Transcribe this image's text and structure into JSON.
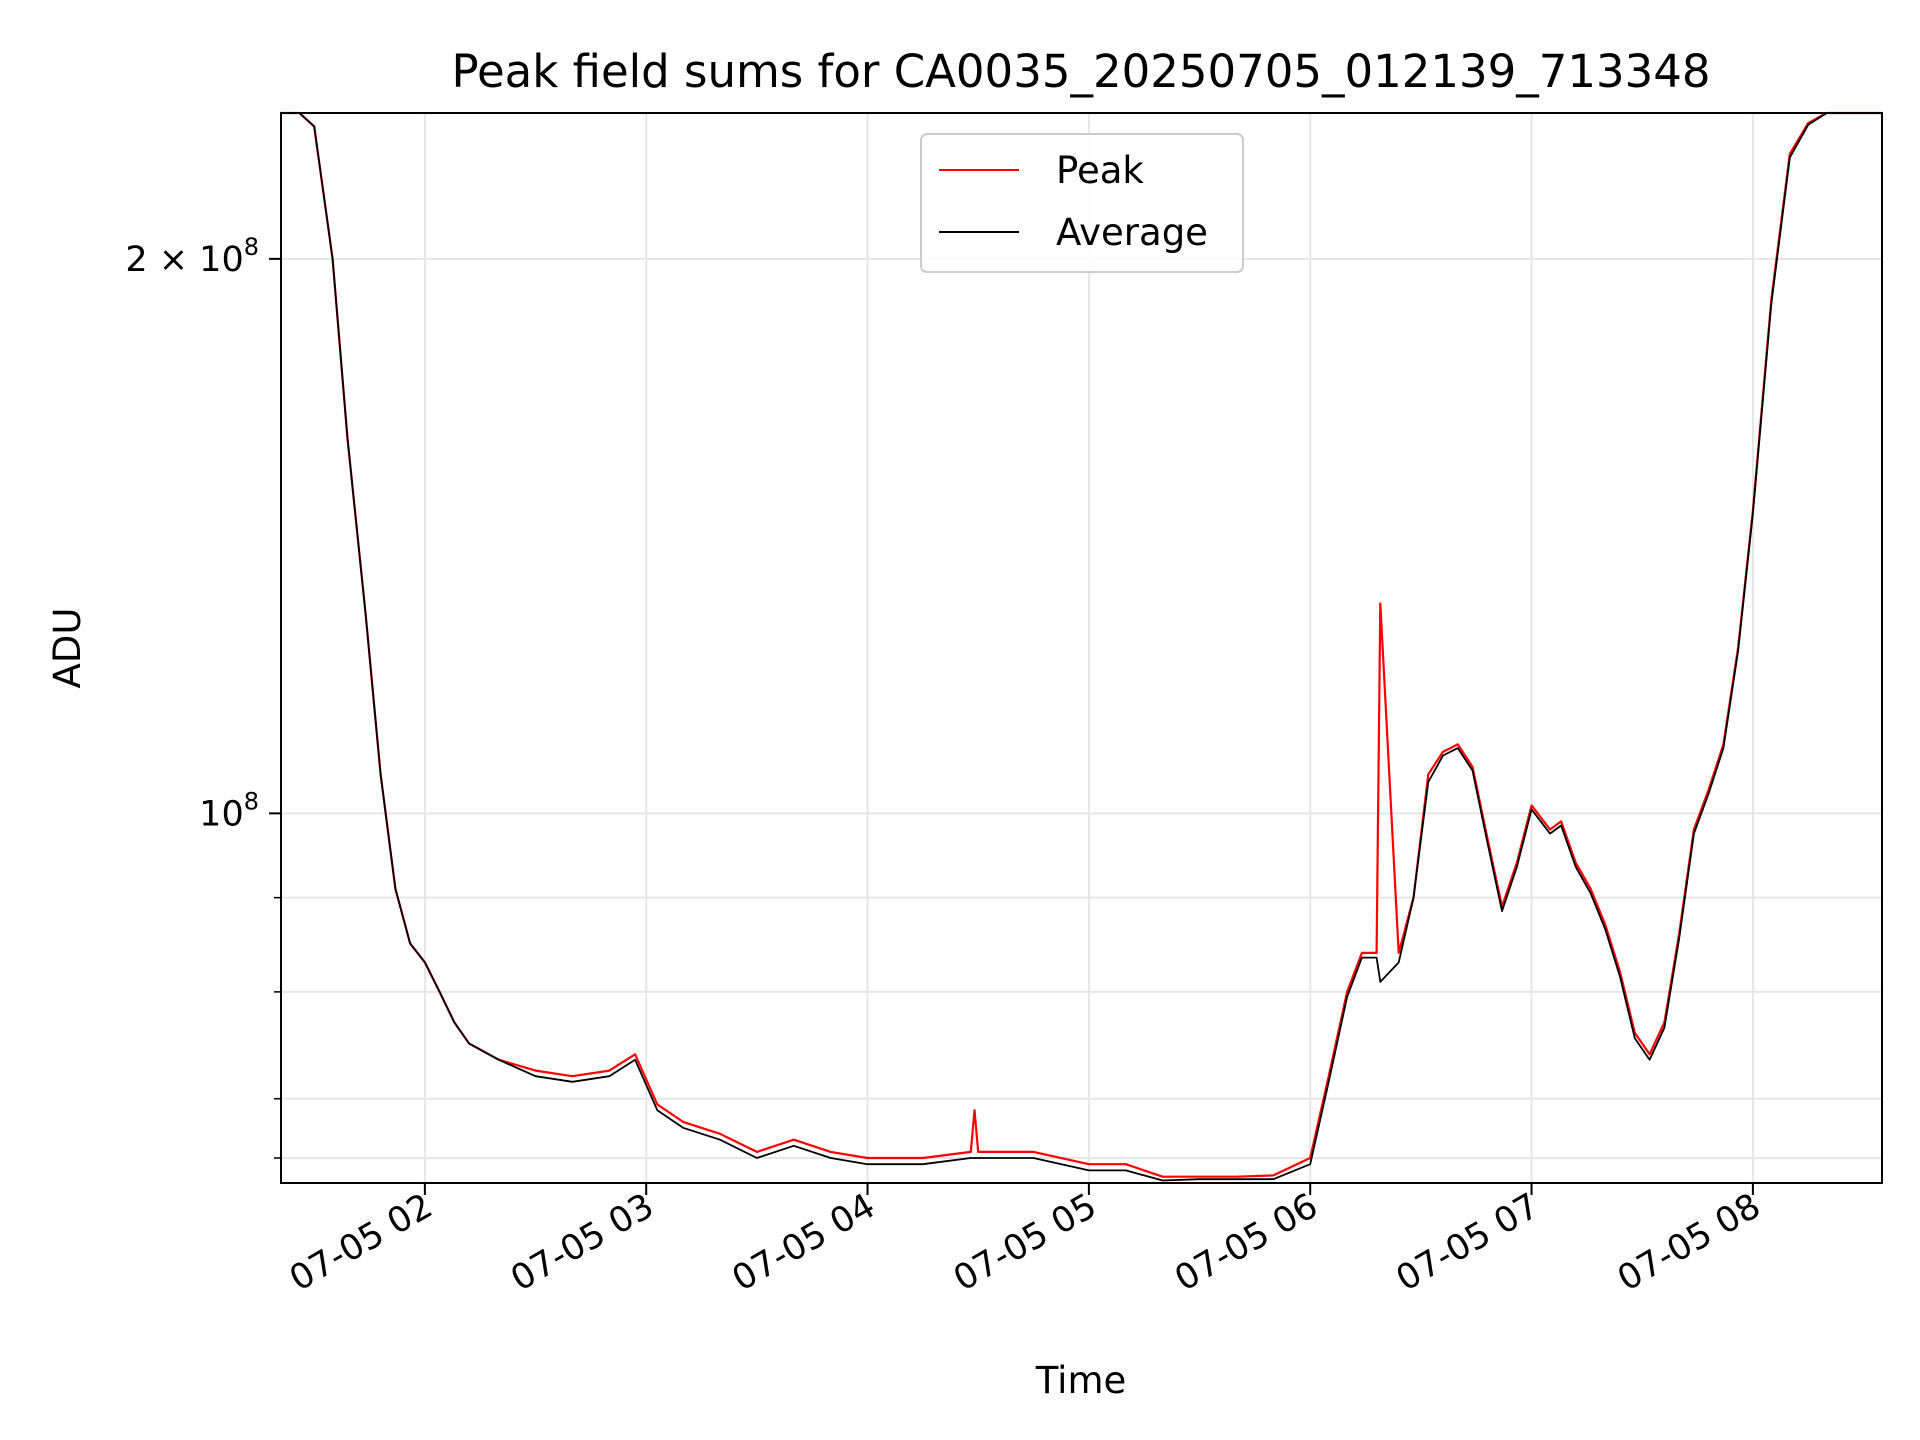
{
  "chart_data": {
    "type": "line",
    "title": "Peak field sums for CA0035_20250705_012139_713348",
    "xlabel": "Time",
    "ylabel": "ADU",
    "x_scale": "time",
    "y_scale": "log",
    "xlim": [
      "2025-07-05 01:21",
      "2025-07-05 08:35"
    ],
    "ylim": [
      63000000,
      240000000
    ],
    "x_ticks": [
      {
        "value": "2025-07-05 02:00",
        "label": "07-05 02"
      },
      {
        "value": "2025-07-05 03:00",
        "label": "07-05 03"
      },
      {
        "value": "2025-07-05 04:00",
        "label": "07-05 04"
      },
      {
        "value": "2025-07-05 05:00",
        "label": "07-05 05"
      },
      {
        "value": "2025-07-05 06:00",
        "label": "07-05 06"
      },
      {
        "value": "2025-07-05 07:00",
        "label": "07-05 07"
      },
      {
        "value": "2025-07-05 08:00",
        "label": "07-05 08"
      }
    ],
    "y_major_ticks": [
      {
        "value": 100000000,
        "label_base": "10",
        "label_exp": "8",
        "label_coef": ""
      },
      {
        "value": 200000000,
        "label_base": "10",
        "label_exp": "8",
        "label_coef": "2 × "
      }
    ],
    "y_minor_ticks": [
      65000000,
      70000000,
      80000000,
      90000000
    ],
    "grid": true,
    "legend_position": "upper-center",
    "series": [
      {
        "name": "Peak",
        "color": "#ff0000",
        "x": [
          "2025-07-05 01:21",
          "2025-07-05 01:26",
          "2025-07-05 01:30",
          "2025-07-05 01:35",
          "2025-07-05 01:39",
          "2025-07-05 01:44",
          "2025-07-05 01:48",
          "2025-07-05 01:52",
          "2025-07-05 01:56",
          "2025-07-05 02:00",
          "2025-07-05 02:04",
          "2025-07-05 02:08",
          "2025-07-05 02:12",
          "2025-07-05 02:20",
          "2025-07-05 02:30",
          "2025-07-05 02:40",
          "2025-07-05 02:50",
          "2025-07-05 02:57",
          "2025-07-05 03:03",
          "2025-07-05 03:10",
          "2025-07-05 03:20",
          "2025-07-05 03:30",
          "2025-07-05 03:40",
          "2025-07-05 03:50",
          "2025-07-05 04:00",
          "2025-07-05 04:15",
          "2025-07-05 04:28",
          "2025-07-05 04:29",
          "2025-07-05 04:30",
          "2025-07-05 04:45",
          "2025-07-05 05:00",
          "2025-07-05 05:10",
          "2025-07-05 05:20",
          "2025-07-05 05:30",
          "2025-07-05 05:40",
          "2025-07-05 05:50",
          "2025-07-05 06:00",
          "2025-07-05 06:05",
          "2025-07-05 06:10",
          "2025-07-05 06:14",
          "2025-07-05 06:17",
          "2025-07-05 06:18",
          "2025-07-05 06:19",
          "2025-07-05 06:24",
          "2025-07-05 06:28",
          "2025-07-05 06:32",
          "2025-07-05 06:36",
          "2025-07-05 06:40",
          "2025-07-05 06:44",
          "2025-07-05 06:48",
          "2025-07-05 06:52",
          "2025-07-05 06:56",
          "2025-07-05 07:00",
          "2025-07-05 07:05",
          "2025-07-05 07:08",
          "2025-07-05 07:12",
          "2025-07-05 07:16",
          "2025-07-05 07:20",
          "2025-07-05 07:24",
          "2025-07-05 07:28",
          "2025-07-05 07:32",
          "2025-07-05 07:36",
          "2025-07-05 07:40",
          "2025-07-05 07:44",
          "2025-07-05 07:48",
          "2025-07-05 07:52",
          "2025-07-05 07:56",
          "2025-07-05 08:00",
          "2025-07-05 08:05",
          "2025-07-05 08:10",
          "2025-07-05 08:15",
          "2025-07-05 08:20",
          "2025-07-05 08:25",
          "2025-07-05 08:30",
          "2025-07-05 08:35"
        ],
        "y": [
          240000000,
          240000000,
          236000000,
          200000000,
          160000000,
          128000000,
          105000000,
          91000000,
          85000000,
          83000000,
          80000000,
          77000000,
          75000000,
          73500000,
          72500000,
          72000000,
          72500000,
          74000000,
          69500000,
          68000000,
          67000000,
          65500000,
          66500000,
          65500000,
          65000000,
          65000000,
          65500000,
          69000000,
          65500000,
          65500000,
          64500000,
          64500000,
          63500000,
          63500000,
          63500000,
          63600000,
          65000000,
          72000000,
          80000000,
          84000000,
          84000000,
          84000000,
          130000000,
          84000000,
          90000000,
          105000000,
          108000000,
          109000000,
          106000000,
          97000000,
          89000000,
          94000000,
          101000000,
          98000000,
          99000000,
          94000000,
          91000000,
          87000000,
          82000000,
          76000000,
          74000000,
          77000000,
          86000000,
          98000000,
          103000000,
          109000000,
          123000000,
          146000000,
          190000000,
          228000000,
          237000000,
          240000000,
          240000000,
          240000000,
          240000000
        ]
      },
      {
        "name": "Average",
        "color": "#000000",
        "x": [
          "2025-07-05 01:21",
          "2025-07-05 01:26",
          "2025-07-05 01:30",
          "2025-07-05 01:35",
          "2025-07-05 01:39",
          "2025-07-05 01:44",
          "2025-07-05 01:48",
          "2025-07-05 01:52",
          "2025-07-05 01:56",
          "2025-07-05 02:00",
          "2025-07-05 02:04",
          "2025-07-05 02:08",
          "2025-07-05 02:12",
          "2025-07-05 02:20",
          "2025-07-05 02:30",
          "2025-07-05 02:40",
          "2025-07-05 02:50",
          "2025-07-05 02:57",
          "2025-07-05 03:03",
          "2025-07-05 03:10",
          "2025-07-05 03:20",
          "2025-07-05 03:30",
          "2025-07-05 03:40",
          "2025-07-05 03:50",
          "2025-07-05 04:00",
          "2025-07-05 04:15",
          "2025-07-05 04:28",
          "2025-07-05 04:30",
          "2025-07-05 04:45",
          "2025-07-05 05:00",
          "2025-07-05 05:10",
          "2025-07-05 05:20",
          "2025-07-05 05:30",
          "2025-07-05 05:40",
          "2025-07-05 05:50",
          "2025-07-05 06:00",
          "2025-07-05 06:05",
          "2025-07-05 06:10",
          "2025-07-05 06:14",
          "2025-07-05 06:18",
          "2025-07-05 06:19",
          "2025-07-05 06:24",
          "2025-07-05 06:28",
          "2025-07-05 06:32",
          "2025-07-05 06:36",
          "2025-07-05 06:40",
          "2025-07-05 06:44",
          "2025-07-05 06:48",
          "2025-07-05 06:52",
          "2025-07-05 06:56",
          "2025-07-05 07:00",
          "2025-07-05 07:05",
          "2025-07-05 07:08",
          "2025-07-05 07:12",
          "2025-07-05 07:16",
          "2025-07-05 07:20",
          "2025-07-05 07:24",
          "2025-07-05 07:28",
          "2025-07-05 07:32",
          "2025-07-05 07:36",
          "2025-07-05 07:40",
          "2025-07-05 07:44",
          "2025-07-05 07:48",
          "2025-07-05 07:52",
          "2025-07-05 07:56",
          "2025-07-05 08:00",
          "2025-07-05 08:05",
          "2025-07-05 08:10",
          "2025-07-05 08:15",
          "2025-07-05 08:20",
          "2025-07-05 08:25",
          "2025-07-05 08:30",
          "2025-07-05 08:35"
        ],
        "y": [
          240000000,
          240000000,
          236000000,
          200000000,
          160000000,
          128000000,
          105000000,
          91000000,
          85000000,
          83000000,
          80000000,
          77000000,
          75000000,
          73500000,
          72000000,
          71500000,
          72000000,
          73500000,
          69000000,
          67500000,
          66500000,
          65000000,
          66000000,
          65000000,
          64500000,
          64500000,
          65000000,
          65000000,
          65000000,
          64000000,
          64000000,
          63200000,
          63300000,
          63300000,
          63300000,
          64500000,
          71500000,
          79500000,
          83500000,
          83500000,
          81000000,
          83000000,
          90000000,
          104000000,
          107500000,
          108500000,
          105500000,
          96500000,
          88500000,
          93500000,
          100500000,
          97500000,
          98500000,
          93500000,
          90500000,
          86500000,
          81500000,
          75500000,
          73500000,
          76500000,
          85500000,
          97500000,
          102500000,
          108500000,
          122500000,
          145500000,
          189000000,
          227000000,
          236500000,
          240000000,
          240000000,
          240000000,
          240000000
        ]
      }
    ]
  }
}
